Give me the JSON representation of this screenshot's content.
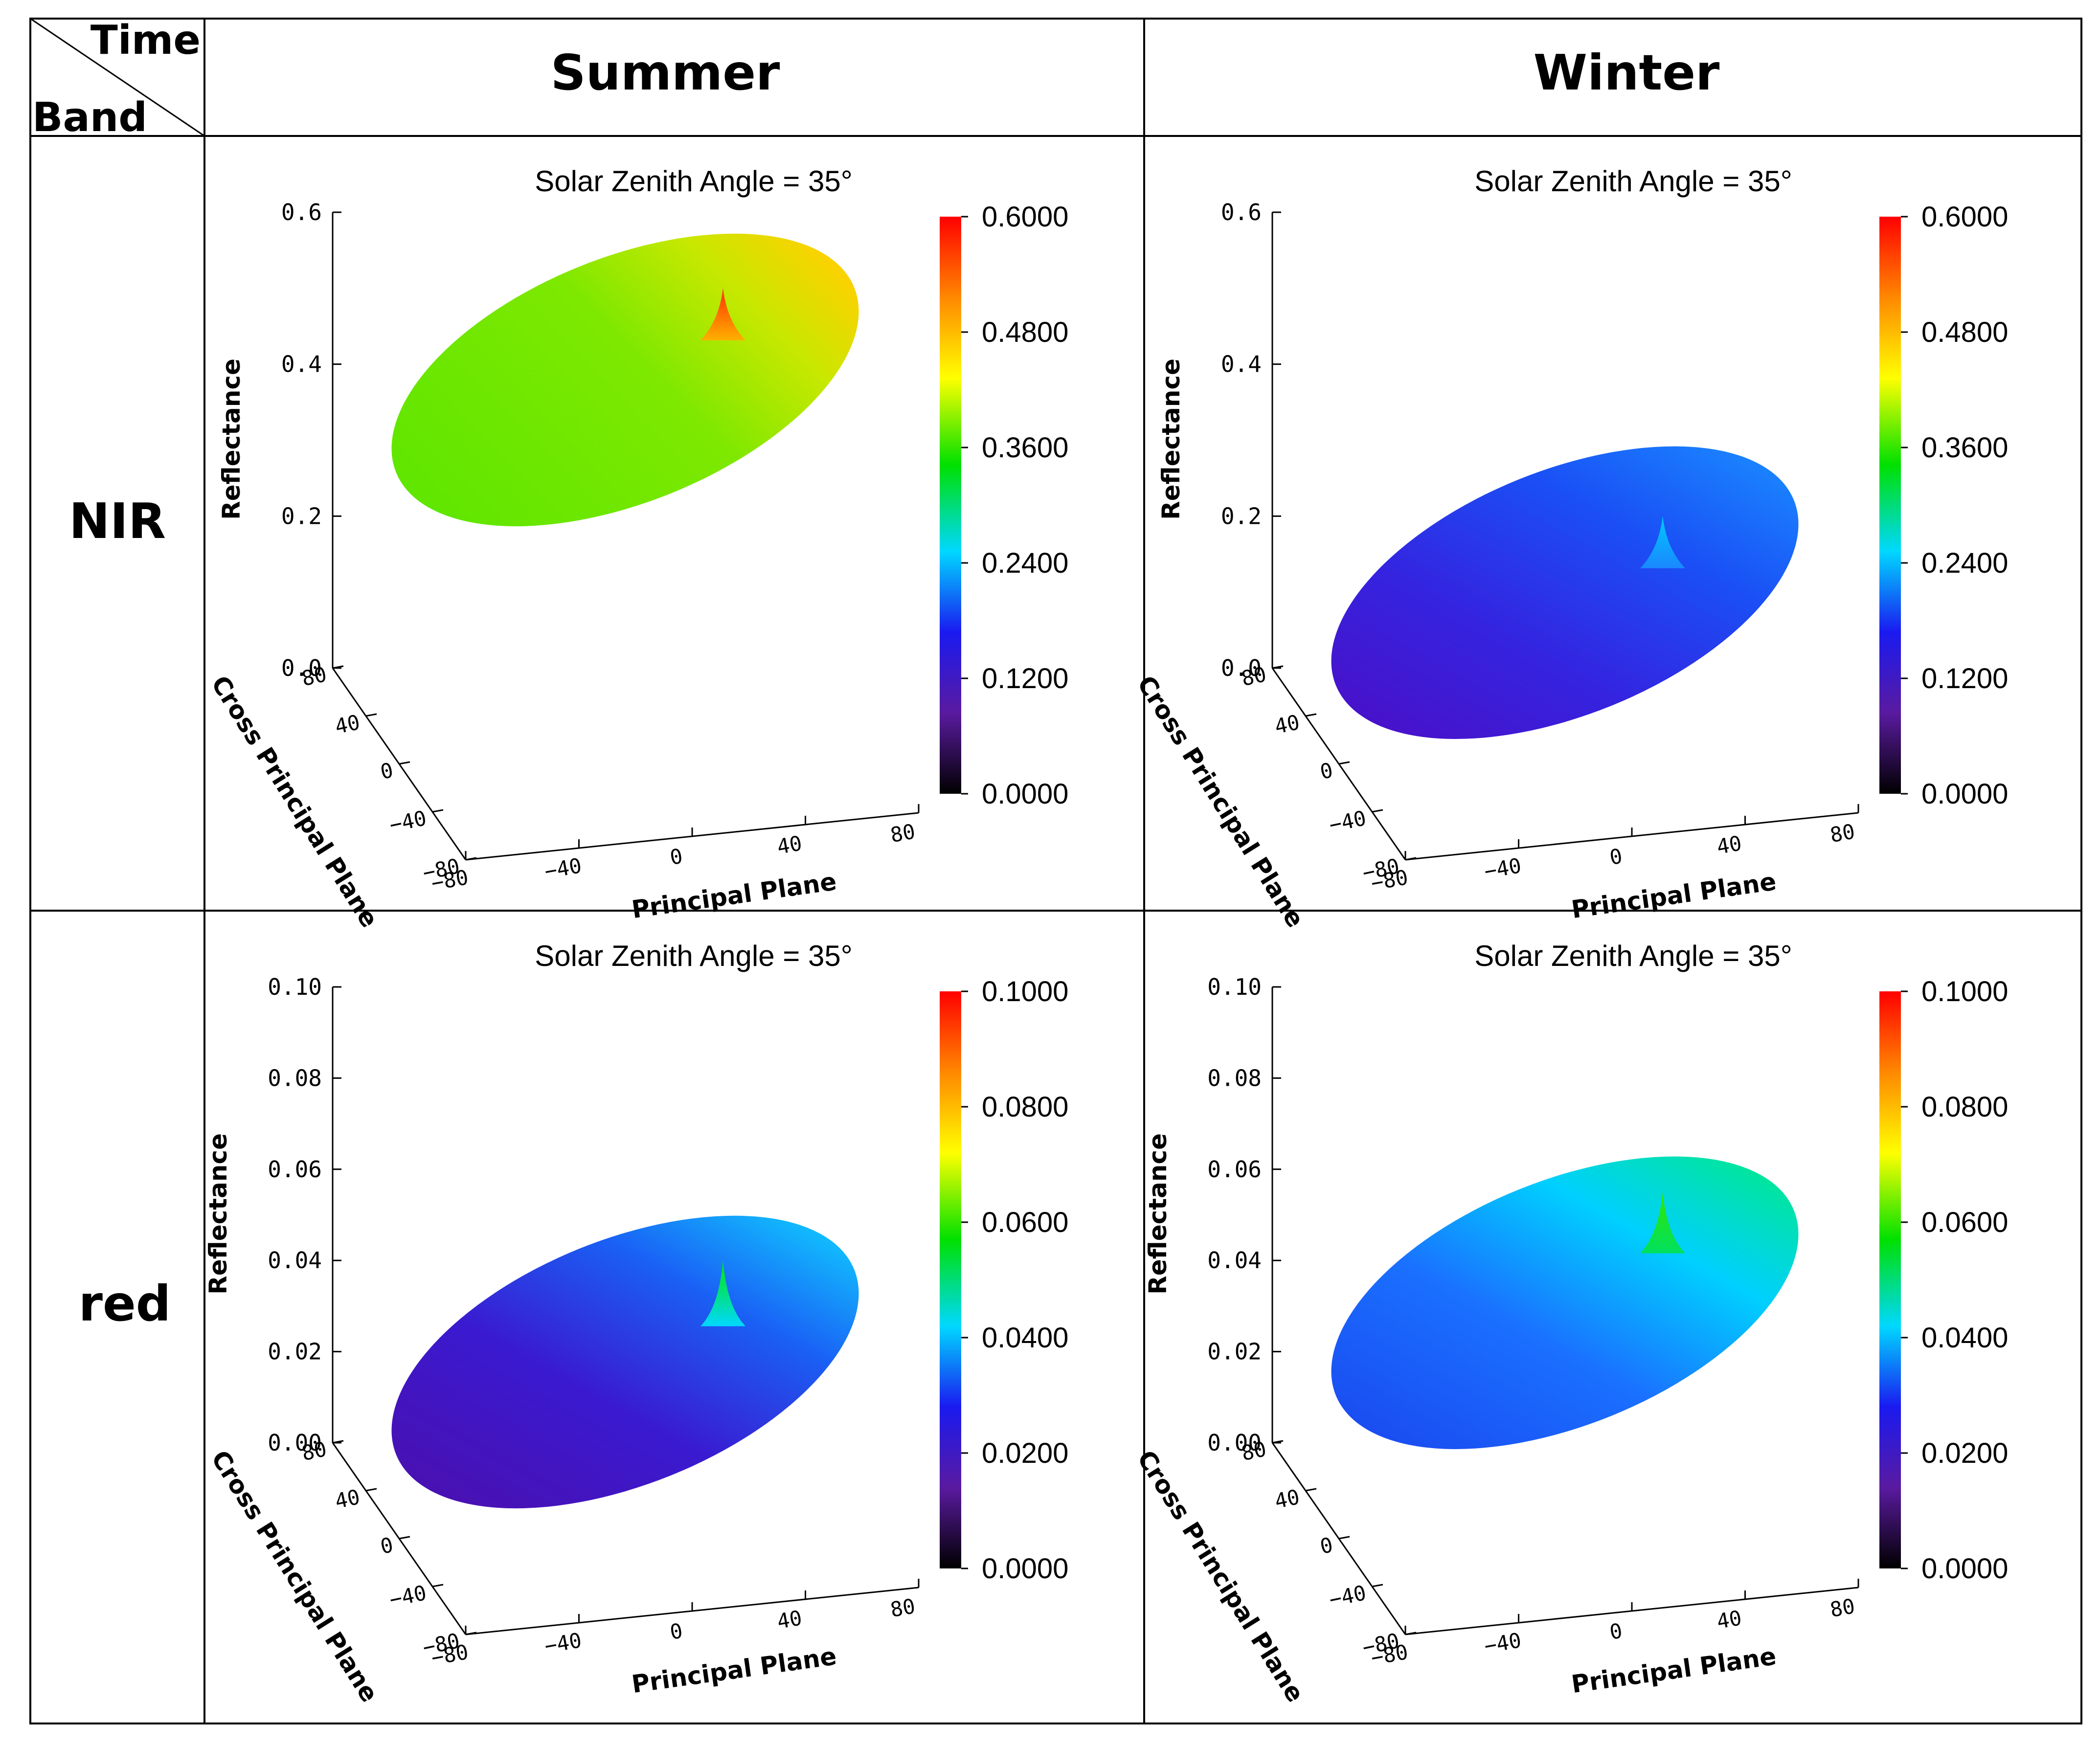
{
  "table": {
    "corner_top": "Time",
    "corner_bottom": "Band",
    "columns": [
      "Summer",
      "Winter"
    ],
    "rows": [
      "NIR",
      "red"
    ]
  },
  "colors": {
    "grid_line": "#000000",
    "surface_nir_summer": "#5ee600",
    "surface_nir_winter": "#2a3ff0",
    "surface_red_summer": "#3a2ed8",
    "surface_red_winter": "#1a8cff",
    "colorbar_stops": [
      "#000000",
      "#5a1aa0",
      "#1a1af0",
      "#00e5ff",
      "#00e000",
      "#ffff00",
      "#ff8800",
      "#ff0000"
    ]
  },
  "chart_data": [
    {
      "type": "surface3d",
      "band": "NIR",
      "season": "Summer",
      "title": "Solar Zenith Angle = 35°",
      "xlabel": "Principal Plane",
      "ylabel": "Cross Principal Plane",
      "zlabel": "Reflectance",
      "x_ticks": [
        "−80",
        "−40",
        "0",
        "40",
        "80"
      ],
      "y_ticks": [
        "−80",
        "−40",
        "0",
        "40",
        "80"
      ],
      "z_ticks": [
        "0.0",
        "0.2",
        "0.4",
        "0.6"
      ],
      "zlim": [
        0,
        0.6
      ],
      "surface_min": 0.34,
      "surface_max": 0.47,
      "hotspot_peak": 0.5,
      "colorbar_ticks": [
        "0.0000",
        "0.1200",
        "0.2400",
        "0.3600",
        "0.4800",
        "0.6000"
      ],
      "colorbar_range": [
        0,
        0.6
      ]
    },
    {
      "type": "surface3d",
      "band": "NIR",
      "season": "Winter",
      "title": "Solar Zenith Angle = 35°",
      "xlabel": "Principal Plane",
      "ylabel": "Cross Principal Plane",
      "zlabel": "Reflectance",
      "x_ticks": [
        "−80",
        "−40",
        "0",
        "40",
        "80"
      ],
      "y_ticks": [
        "−80",
        "−40",
        "0",
        "40",
        "80"
      ],
      "z_ticks": [
        "0.0",
        "0.2",
        "0.4",
        "0.6"
      ],
      "zlim": [
        0,
        0.6
      ],
      "surface_min": 0.08,
      "surface_max": 0.17,
      "hotspot_peak": 0.2,
      "colorbar_ticks": [
        "0.0000",
        "0.1200",
        "0.2400",
        "0.3600",
        "0.4800",
        "0.6000"
      ],
      "colorbar_range": [
        0,
        0.6
      ]
    },
    {
      "type": "surface3d",
      "band": "red",
      "season": "Summer",
      "title": "Solar Zenith Angle = 35°",
      "xlabel": "Principal Plane",
      "ylabel": "Cross Principal Plane",
      "zlabel": "Reflectance",
      "x_ticks": [
        "−80",
        "−40",
        "0",
        "40",
        "80"
      ],
      "y_ticks": [
        "−80",
        "−40",
        "0",
        "40",
        "80"
      ],
      "z_ticks": [
        "0.00",
        "0.02",
        "0.04",
        "0.06",
        "0.08",
        "0.10"
      ],
      "zlim": [
        0,
        0.1
      ],
      "surface_min": 0.012,
      "surface_max": 0.032,
      "hotspot_peak": 0.04,
      "colorbar_ticks": [
        "0.0000",
        "0.0200",
        "0.0400",
        "0.0600",
        "0.0800",
        "0.1000"
      ],
      "colorbar_range": [
        0,
        0.1
      ]
    },
    {
      "type": "surface3d",
      "band": "red",
      "season": "Winter",
      "title": "Solar Zenith Angle = 35°",
      "xlabel": "Principal Plane",
      "ylabel": "Cross Principal Plane",
      "zlabel": "Reflectance",
      "x_ticks": [
        "−80",
        "−40",
        "0",
        "40",
        "80"
      ],
      "y_ticks": [
        "−80",
        "−40",
        "0",
        "40",
        "80"
      ],
      "z_ticks": [
        "0.00",
        "0.02",
        "0.04",
        "0.06",
        "0.08",
        "0.10"
      ],
      "zlim": [
        0,
        0.1
      ],
      "surface_min": 0.022,
      "surface_max": 0.048,
      "hotspot_peak": 0.055,
      "colorbar_ticks": [
        "0.0000",
        "0.0200",
        "0.0400",
        "0.0600",
        "0.0800",
        "0.1000"
      ],
      "colorbar_range": [
        0,
        0.1
      ]
    }
  ]
}
